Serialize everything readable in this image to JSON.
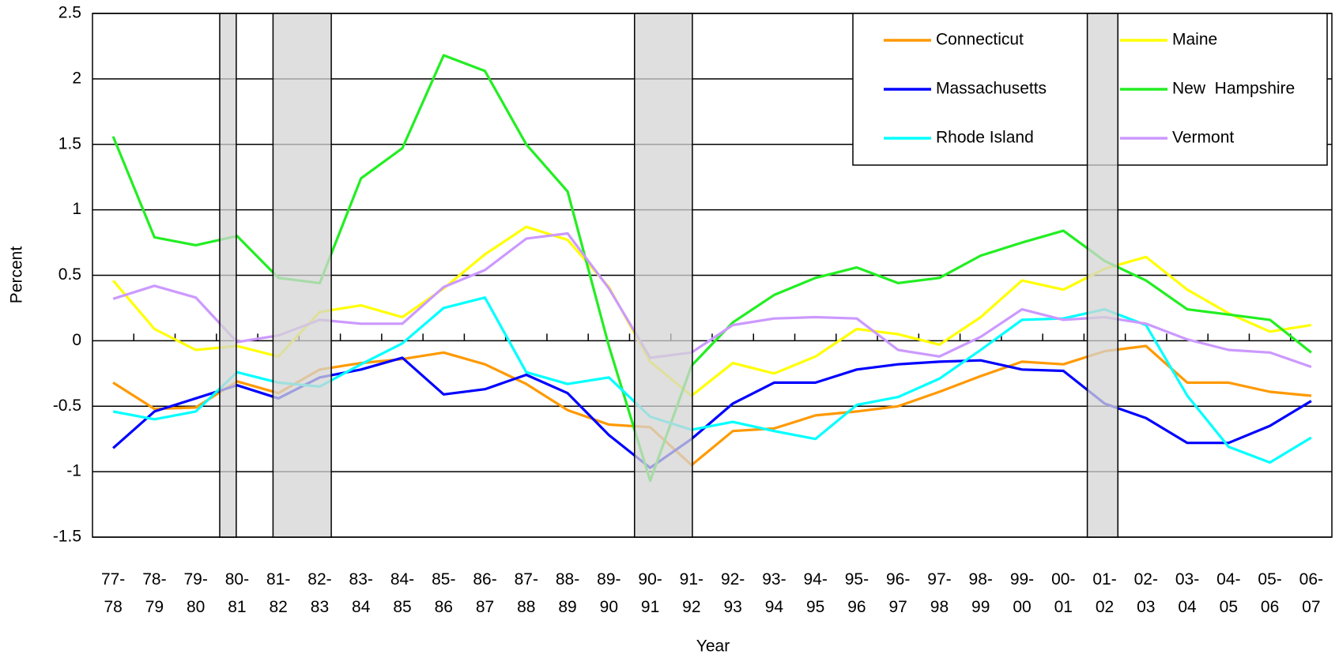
{
  "chart_data": {
    "type": "line",
    "x_label": "Year",
    "y_label": "Percent",
    "categories": [
      "77-\n78",
      "78-\n79",
      "79-\n80",
      "80-\n81",
      "81-\n82",
      "82-\n83",
      "83-\n84",
      "84-\n85",
      "85-\n86",
      "86-\n87",
      "87-\n88",
      "88-\n89",
      "89-\n90",
      "90-\n91",
      "91-\n92",
      "92-\n93",
      "93-\n94",
      "94-\n95",
      "95-\n96",
      "96-\n97",
      "97-\n98",
      "98-\n99",
      "99-\n00",
      "00-\n01",
      "01-\n02",
      "02-\n03",
      "03-\n04",
      "04-\n05",
      "05-\n06",
      "06-\n07"
    ],
    "ylim": [
      -1.5,
      2.5
    ],
    "yticks": [
      -1.5,
      -1,
      -0.5,
      0,
      0.5,
      1,
      1.5,
      2,
      2.5
    ],
    "grid": true,
    "legend": "upper right",
    "series": [
      {
        "name": "Connecticut",
        "color": "#ff9900",
        "values": [
          -0.32,
          -0.52,
          -0.51,
          -0.31,
          -0.4,
          -0.22,
          -0.17,
          -0.14,
          -0.09,
          -0.18,
          -0.33,
          -0.53,
          -0.64,
          -0.66,
          -0.95,
          -0.69,
          -0.67,
          -0.57,
          -0.54,
          -0.5,
          -0.39,
          -0.27,
          -0.16,
          -0.18,
          -0.08,
          -0.04,
          -0.32,
          -0.32,
          -0.39,
          -0.42
        ]
      },
      {
        "name": "Maine",
        "color": "#ffff00",
        "values": [
          0.46,
          0.09,
          -0.07,
          -0.04,
          -0.12,
          0.22,
          0.27,
          0.18,
          0.4,
          0.66,
          0.87,
          0.77,
          0.41,
          -0.16,
          -0.42,
          -0.17,
          -0.25,
          -0.12,
          0.09,
          0.05,
          -0.03,
          0.18,
          0.46,
          0.39,
          0.55,
          0.64,
          0.39,
          0.21,
          0.07,
          0.12
        ]
      },
      {
        "name": "Massachusetts",
        "color": "#0000ff",
        "values": [
          -0.82,
          -0.54,
          -0.44,
          -0.34,
          -0.44,
          -0.28,
          -0.22,
          -0.13,
          -0.41,
          -0.37,
          -0.26,
          -0.4,
          -0.72,
          -0.97,
          -0.75,
          -0.48,
          -0.32,
          -0.32,
          -0.22,
          -0.18,
          -0.16,
          -0.15,
          -0.22,
          -0.23,
          -0.48,
          -0.59,
          -0.78,
          -0.78,
          -0.65,
          -0.46
        ]
      },
      {
        "name": "New  Hampshire",
        "color": "#22ee22",
        "values": [
          1.56,
          0.79,
          0.73,
          0.8,
          0.48,
          0.44,
          1.24,
          1.47,
          2.18,
          2.06,
          1.5,
          1.14,
          -0.04,
          -1.07,
          -0.19,
          0.14,
          0.35,
          0.48,
          0.56,
          0.44,
          0.48,
          0.65,
          0.75,
          0.84,
          0.61,
          0.46,
          0.24,
          0.2,
          0.16,
          -0.09
        ]
      },
      {
        "name": "Rhode Island",
        "color": "#00ffff",
        "values": [
          -0.54,
          -0.6,
          -0.54,
          -0.24,
          -0.32,
          -0.35,
          -0.18,
          -0.02,
          0.25,
          0.33,
          -0.24,
          -0.33,
          -0.28,
          -0.58,
          -0.68,
          -0.62,
          -0.69,
          -0.75,
          -0.49,
          -0.43,
          -0.29,
          -0.07,
          0.16,
          0.17,
          0.24,
          0.12,
          -0.42,
          -0.81,
          -0.93,
          -0.74
        ]
      },
      {
        "name": "Vermont",
        "color": "#cc99ff",
        "values": [
          0.32,
          0.42,
          0.33,
          -0.01,
          0.04,
          0.16,
          0.13,
          0.13,
          0.41,
          0.54,
          0.78,
          0.82,
          0.4,
          -0.13,
          -0.09,
          0.12,
          0.17,
          0.18,
          0.17,
          -0.07,
          -0.12,
          0.03,
          0.24,
          0.16,
          0.18,
          0.13,
          0.01,
          -0.07,
          -0.09,
          -0.2
        ]
      }
    ]
  }
}
